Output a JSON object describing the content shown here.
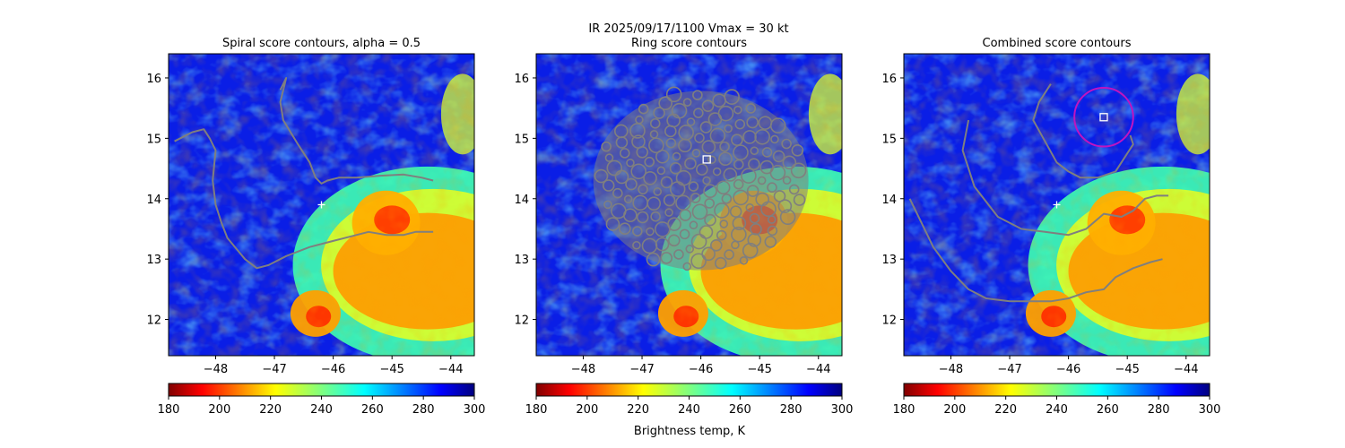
{
  "figure": {
    "suptitle": "IR  2025/09/17/1100    Vmax = 30 kt",
    "colorbar_label": "Brightness temp, K"
  },
  "colors": {
    "contour": "#7f7f7f",
    "center_marker": "#ffffff",
    "circle": "#c014c0"
  },
  "chart_data": [
    {
      "type": "heatmap",
      "title": "Spiral score contours, alpha =  0.5",
      "xlabel": "",
      "ylabel": "",
      "xlim": [
        -48.8,
        -43.6
      ],
      "ylim": [
        11.4,
        16.4
      ],
      "xticks": [
        "−48",
        "−47",
        "−46",
        "−45",
        "−44"
      ],
      "xtick_values": [
        -48,
        -47,
        -46,
        -45,
        -44
      ],
      "yticks": [
        "12",
        "13",
        "14",
        "15",
        "16"
      ],
      "ytick_values": [
        12,
        13,
        14,
        15,
        16
      ],
      "colormap": "jet_r",
      "clim": [
        180,
        300
      ],
      "colorbar_ticks": [
        "180",
        "200",
        "220",
        "240",
        "260",
        "280",
        "300"
      ],
      "colorbar_tick_values": [
        180,
        200,
        220,
        240,
        260,
        280,
        300
      ],
      "center_plus": [
        -46.2,
        13.9
      ],
      "contours": [
        [
          [
            -48.7,
            14.95
          ],
          [
            -48.4,
            15.1
          ],
          [
            -48.2,
            15.15
          ],
          [
            -48.1,
            15.0
          ],
          [
            -48.0,
            14.8
          ],
          [
            -48.05,
            14.3
          ],
          [
            -48.0,
            13.9
          ],
          [
            -47.9,
            13.6
          ],
          [
            -47.8,
            13.35
          ],
          [
            -47.5,
            13.0
          ],
          [
            -47.3,
            12.85
          ],
          [
            -47.1,
            12.9
          ],
          [
            -46.8,
            13.05
          ],
          [
            -46.4,
            13.2
          ],
          [
            -46.0,
            13.3
          ],
          [
            -45.6,
            13.4
          ],
          [
            -45.4,
            13.45
          ],
          [
            -45.1,
            13.4
          ],
          [
            -44.8,
            13.4
          ],
          [
            -44.6,
            13.45
          ],
          [
            -44.3,
            13.45
          ]
        ],
        [
          [
            -46.9,
            15.8
          ],
          [
            -46.8,
            16.0
          ],
          [
            -46.9,
            15.6
          ],
          [
            -46.85,
            15.3
          ],
          [
            -46.6,
            14.9
          ],
          [
            -46.4,
            14.6
          ],
          [
            -46.3,
            14.35
          ],
          [
            -46.2,
            14.25
          ],
          [
            -46.1,
            14.3
          ],
          [
            -45.9,
            14.35
          ],
          [
            -45.6,
            14.35
          ],
          [
            -45.2,
            14.38
          ],
          [
            -44.8,
            14.4
          ],
          [
            -44.5,
            14.35
          ],
          [
            -44.3,
            14.3
          ]
        ]
      ],
      "markers": []
    },
    {
      "type": "heatmap",
      "title": "Ring score contours",
      "xlabel": "",
      "ylabel": "",
      "xlim": [
        -48.8,
        -43.6
      ],
      "ylim": [
        11.4,
        16.4
      ],
      "xticks": [
        "−48",
        "−47",
        "−46",
        "−45",
        "−44"
      ],
      "xtick_values": [
        -48,
        -47,
        -46,
        -45,
        -44
      ],
      "yticks": [
        "12",
        "13",
        "14",
        "15",
        "16"
      ],
      "ytick_values": [
        12,
        13,
        14,
        15,
        16
      ],
      "colormap": "jet_r",
      "clim": [
        180,
        300
      ],
      "colorbar_ticks": [
        "180",
        "200",
        "220",
        "240",
        "260",
        "280",
        "300"
      ],
      "colorbar_tick_values": [
        180,
        200,
        220,
        240,
        260,
        280,
        300
      ],
      "ring_region_center": [
        -46.0,
        14.3
      ],
      "square_marker": [
        -45.9,
        14.65
      ],
      "contours": [],
      "markers": [
        "square"
      ]
    },
    {
      "type": "heatmap",
      "title": "Combined score contours",
      "xlabel": "",
      "ylabel": "",
      "xlim": [
        -48.8,
        -43.6
      ],
      "ylim": [
        11.4,
        16.4
      ],
      "xticks": [
        "−48",
        "−47",
        "−46",
        "−45",
        "−44"
      ],
      "xtick_values": [
        -48,
        -47,
        -46,
        -45,
        -44
      ],
      "yticks": [
        "12",
        "13",
        "14",
        "15",
        "16"
      ],
      "ytick_values": [
        12,
        13,
        14,
        15,
        16
      ],
      "colormap": "jet_r",
      "clim": [
        180,
        300
      ],
      "colorbar_ticks": [
        "180",
        "200",
        "220",
        "240",
        "260",
        "280",
        "300"
      ],
      "colorbar_tick_values": [
        180,
        200,
        220,
        240,
        260,
        280,
        300
      ],
      "center_plus": [
        -46.2,
        13.9
      ],
      "square_marker": [
        -45.4,
        15.35
      ],
      "circle_center": [
        -45.4,
        15.35
      ],
      "circle_radius_deg": 0.5,
      "contours": [
        [
          [
            -48.7,
            14.0
          ],
          [
            -48.5,
            13.6
          ],
          [
            -48.3,
            13.2
          ],
          [
            -48.0,
            12.8
          ],
          [
            -47.7,
            12.5
          ],
          [
            -47.4,
            12.35
          ],
          [
            -47.0,
            12.3
          ],
          [
            -46.6,
            12.3
          ],
          [
            -46.3,
            12.3
          ],
          [
            -46.0,
            12.35
          ],
          [
            -45.7,
            12.45
          ],
          [
            -45.4,
            12.5
          ],
          [
            -45.2,
            12.7
          ],
          [
            -44.9,
            12.85
          ],
          [
            -44.6,
            12.95
          ],
          [
            -44.4,
            13.0
          ]
        ],
        [
          [
            -47.7,
            15.3
          ],
          [
            -47.8,
            14.8
          ],
          [
            -47.6,
            14.2
          ],
          [
            -47.2,
            13.7
          ],
          [
            -46.8,
            13.5
          ],
          [
            -46.4,
            13.45
          ],
          [
            -46.0,
            13.4
          ],
          [
            -45.7,
            13.5
          ],
          [
            -45.4,
            13.75
          ],
          [
            -45.1,
            13.7
          ],
          [
            -44.9,
            13.8
          ],
          [
            -44.7,
            14.0
          ],
          [
            -44.5,
            14.05
          ],
          [
            -44.3,
            14.05
          ]
        ],
        [
          [
            -46.3,
            15.9
          ],
          [
            -46.5,
            15.6
          ],
          [
            -46.6,
            15.3
          ],
          [
            -46.4,
            14.95
          ],
          [
            -46.2,
            14.6
          ],
          [
            -46.0,
            14.45
          ],
          [
            -45.8,
            14.35
          ],
          [
            -45.5,
            14.35
          ],
          [
            -45.2,
            14.45
          ],
          [
            -45.0,
            14.75
          ],
          [
            -44.9,
            14.9
          ],
          [
            -44.95,
            15.05
          ]
        ]
      ],
      "markers": [
        "square",
        "circle"
      ]
    }
  ]
}
